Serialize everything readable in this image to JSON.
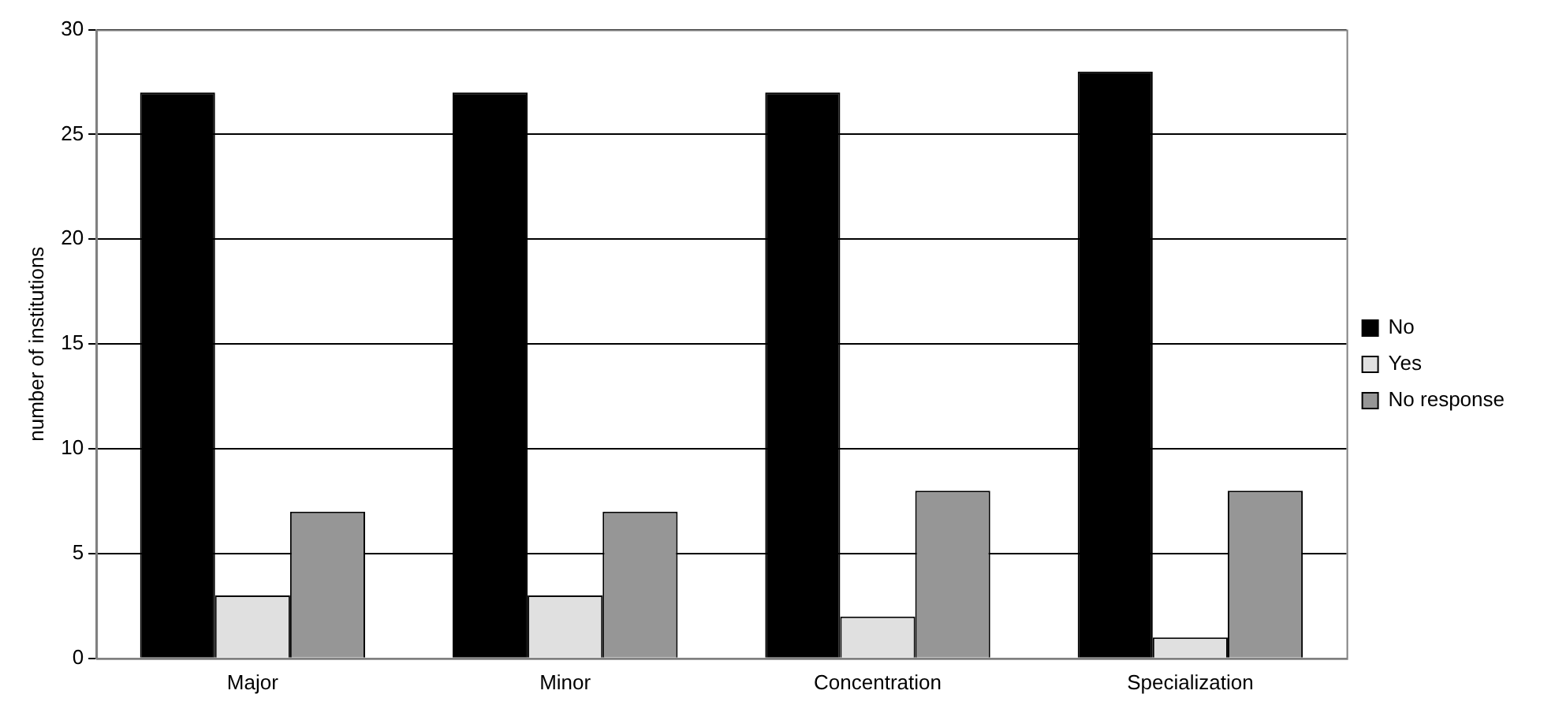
{
  "chart_data": {
    "type": "bar",
    "ylabel": "number of institutions",
    "categories": [
      "Major",
      "Minor",
      "Concentration",
      "Specialization"
    ],
    "series": [
      {
        "name": "No",
        "color": "#000000",
        "values": [
          27,
          27,
          27,
          28
        ]
      },
      {
        "name": "Yes",
        "color": "#e0e0e0",
        "values": [
          3,
          3,
          2,
          1
        ]
      },
      {
        "name": "No response",
        "color": "#969696",
        "values": [
          7,
          7,
          8,
          8
        ]
      }
    ],
    "ylim": [
      0,
      30
    ],
    "yticks": [
      0,
      5,
      10,
      15,
      20,
      25,
      30
    ],
    "grid": "y",
    "legend": "right"
  }
}
